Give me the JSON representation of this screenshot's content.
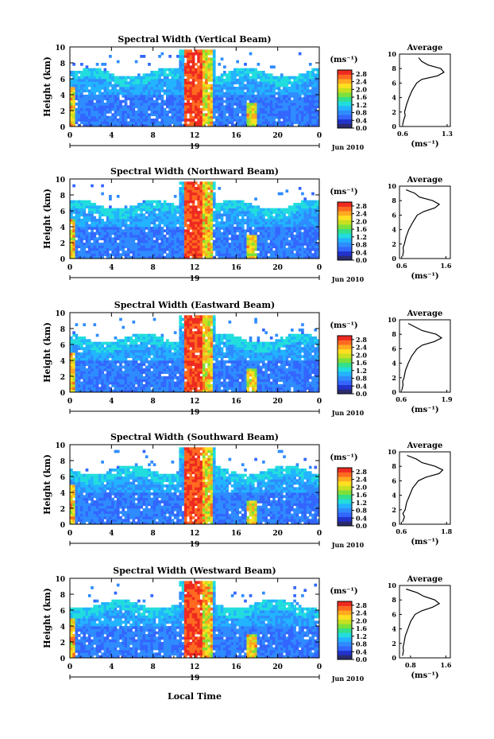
{
  "figure": {
    "xlabel": "Local Time",
    "date_label": "Jun 2010",
    "day_label": "19"
  },
  "chart_data": [
    {
      "type": "heatmap",
      "title": "Spectral Width (Vertical Beam)",
      "ylabel": "Height (km)",
      "xlabel": "Local Time",
      "x_ticks": [
        "0",
        "4",
        "8",
        "12",
        "16",
        "20",
        "0"
      ],
      "y_ticks": [
        "0",
        "2",
        "4",
        "6",
        "8",
        "10"
      ],
      "xlim": [
        0,
        24
      ],
      "ylim": [
        0,
        10
      ],
      "colorbar": {
        "unit": "(ms⁻¹)",
        "ticks": [
          "0.0",
          "0.4",
          "0.8",
          "1.2",
          "1.6",
          "2.0",
          "2.4",
          "2.8"
        ],
        "range": [
          0,
          3.0
        ]
      },
      "average": {
        "title": "Average",
        "xlabel": "(ms⁻¹)",
        "x_ticks": [
          "0.6",
          "1.3"
        ],
        "xlim": [
          0.55,
          1.35
        ],
        "y_ticks": [
          "0",
          "2",
          "4",
          "6",
          "8",
          "10"
        ],
        "heights": [
          0.3,
          1,
          1.5,
          2,
          3,
          4,
          5,
          6,
          6.5,
          7,
          7.5,
          8,
          8.5,
          9,
          9.5
        ],
        "values": [
          0.6,
          0.62,
          0.64,
          0.63,
          0.66,
          0.7,
          0.75,
          0.82,
          0.9,
          1.15,
          1.25,
          1.2,
          1.0,
          0.9,
          0.85
        ]
      }
    },
    {
      "type": "heatmap",
      "title": "Spectral Width (Northward Beam)",
      "ylabel": "Height (km)",
      "xlabel": "Local Time",
      "x_ticks": [
        "0",
        "4",
        "8",
        "12",
        "16",
        "20",
        "0"
      ],
      "y_ticks": [
        "0",
        "2",
        "4",
        "6",
        "8",
        "10"
      ],
      "xlim": [
        0,
        24
      ],
      "ylim": [
        0,
        10
      ],
      "colorbar": {
        "unit": "(ms⁻¹)",
        "ticks": [
          "0.0",
          "0.4",
          "0.8",
          "1.2",
          "1.6",
          "2.0",
          "2.4",
          "2.8"
        ],
        "range": [
          0,
          3.0
        ]
      },
      "average": {
        "title": "Average",
        "xlabel": "(ms⁻¹)",
        "x_ticks": [
          "0.6",
          "1.6"
        ],
        "xlim": [
          0.55,
          1.7
        ],
        "y_ticks": [
          "0",
          "2",
          "4",
          "6",
          "8",
          "10"
        ],
        "heights": [
          0.3,
          1,
          1.5,
          2,
          3,
          4,
          5,
          6,
          6.5,
          7,
          7.5,
          8,
          8.5,
          9,
          9.5
        ],
        "values": [
          0.62,
          0.64,
          0.63,
          0.66,
          0.7,
          0.76,
          0.85,
          0.95,
          1.1,
          1.35,
          1.45,
          1.3,
          1.0,
          0.9,
          0.7
        ]
      }
    },
    {
      "type": "heatmap",
      "title": "Spectral Width (Eastward Beam)",
      "ylabel": "Height (km)",
      "xlabel": "Local Time",
      "x_ticks": [
        "0",
        "4",
        "8",
        "12",
        "16",
        "20",
        "0"
      ],
      "y_ticks": [
        "0",
        "2",
        "4",
        "6",
        "8",
        "10"
      ],
      "xlim": [
        0,
        24
      ],
      "ylim": [
        0,
        10
      ],
      "colorbar": {
        "unit": "(ms⁻¹)",
        "ticks": [
          "0.0",
          "0.4",
          "0.8",
          "1.2",
          "1.6",
          "2.0",
          "2.4",
          "2.8"
        ],
        "range": [
          0,
          3.0
        ]
      },
      "average": {
        "title": "Average",
        "xlabel": "(ms⁻¹)",
        "x_ticks": [
          "0.6",
          "1.9"
        ],
        "xlim": [
          0.55,
          2.0
        ],
        "y_ticks": [
          "0",
          "2",
          "4",
          "6",
          "8",
          "10"
        ],
        "heights": [
          0.3,
          1,
          1.5,
          2,
          3,
          4,
          5,
          6,
          6.5,
          7,
          7.5,
          8,
          8.5,
          9,
          9.5
        ],
        "values": [
          0.62,
          0.65,
          0.64,
          0.68,
          0.72,
          0.8,
          0.9,
          1.05,
          1.2,
          1.55,
          1.75,
          1.6,
          1.2,
          1.0,
          0.8
        ]
      }
    },
    {
      "type": "heatmap",
      "title": "Spectral Width (Southward Beam)",
      "ylabel": "Height (km)",
      "xlabel": "Local Time",
      "x_ticks": [
        "0",
        "4",
        "8",
        "12",
        "16",
        "20",
        "0"
      ],
      "y_ticks": [
        "0",
        "2",
        "4",
        "6",
        "8",
        "10"
      ],
      "xlim": [
        0,
        24
      ],
      "ylim": [
        0,
        10
      ],
      "colorbar": {
        "unit": "(ms⁻¹)",
        "ticks": [
          "0.0",
          "0.4",
          "0.8",
          "1.2",
          "1.6",
          "2.0",
          "2.4",
          "2.8"
        ],
        "range": [
          0,
          3.0
        ]
      },
      "average": {
        "title": "Average",
        "xlabel": "(ms⁻¹)",
        "x_ticks": [
          "0.6",
          "1.8"
        ],
        "xlim": [
          0.55,
          1.9
        ],
        "y_ticks": [
          "0",
          "2",
          "4",
          "6",
          "8",
          "10"
        ],
        "heights": [
          0.3,
          1,
          1.5,
          2,
          3,
          4,
          5,
          6,
          6.5,
          7,
          7.5,
          8,
          8.5,
          9,
          9.5
        ],
        "values": [
          0.63,
          0.68,
          0.64,
          0.7,
          0.74,
          0.82,
          0.9,
          1.05,
          1.25,
          1.6,
          1.7,
          1.5,
          1.15,
          1.0,
          0.75
        ]
      }
    },
    {
      "type": "heatmap",
      "title": "Spectral Width (Westward Beam)",
      "ylabel": "Height (km)",
      "xlabel": "Local Time",
      "x_ticks": [
        "0",
        "4",
        "8",
        "12",
        "16",
        "20",
        "0"
      ],
      "y_ticks": [
        "0",
        "2",
        "4",
        "6",
        "8",
        "10"
      ],
      "xlim": [
        0,
        24
      ],
      "ylim": [
        0,
        10
      ],
      "colorbar": {
        "unit": "(ms⁻¹)",
        "ticks": [
          "0.0",
          "0.4",
          "0.8",
          "1.2",
          "1.6",
          "2.0",
          "2.4",
          "2.8"
        ],
        "range": [
          0,
          3.0
        ]
      },
      "average": {
        "title": "Average",
        "xlabel": "(ms⁻¹)",
        "x_ticks": [
          "0.8",
          "1.6"
        ],
        "xlim": [
          0.55,
          1.7
        ],
        "y_ticks": [
          "0",
          "2",
          "4",
          "6",
          "8",
          "10"
        ],
        "heights": [
          0.3,
          1,
          1.5,
          2,
          3,
          4,
          5,
          6,
          6.5,
          7,
          7.5,
          8,
          8.5,
          9,
          9.5
        ],
        "values": [
          0.62,
          0.64,
          0.63,
          0.65,
          0.68,
          0.74,
          0.8,
          0.9,
          1.05,
          1.3,
          1.45,
          1.35,
          1.1,
          0.95,
          0.7
        ]
      }
    }
  ],
  "colormap": [
    "#2b2b6e",
    "#2233cc",
    "#3366ff",
    "#2f8cff",
    "#22b4ff",
    "#22dddd",
    "#33e08a",
    "#7ee03a",
    "#c8e020",
    "#ffe020",
    "#ffaa20",
    "#ff6a20",
    "#ee2a20"
  ]
}
